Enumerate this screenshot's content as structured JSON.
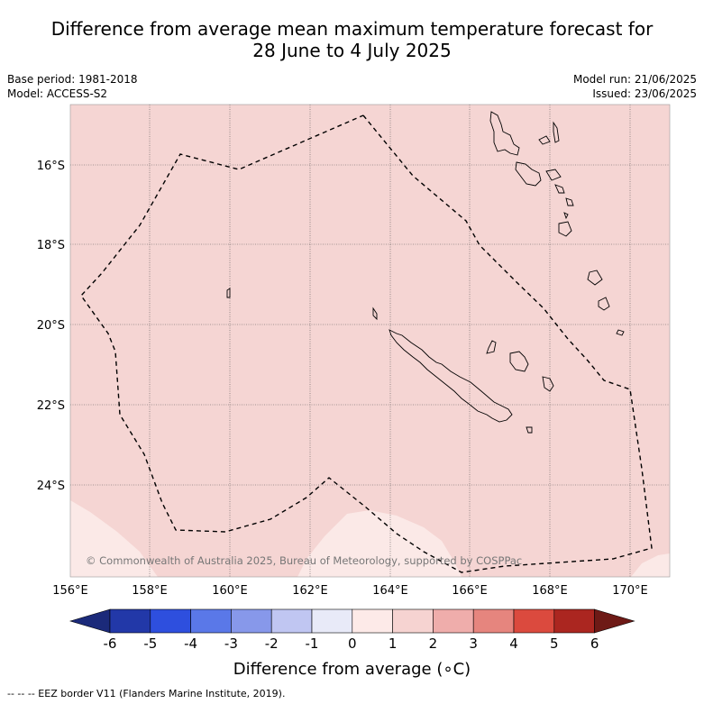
{
  "title": {
    "line1": "Difference from average mean maximum temperature forecast for",
    "line2": "28 June to 4 July 2025"
  },
  "meta_left": {
    "base_period": "Base period: 1981-2018",
    "model": "Model: ACCESS-S2"
  },
  "meta_right": {
    "model_run": "Model run: 21/06/2025",
    "issued": "Issued: 23/06/2025"
  },
  "map": {
    "lat_labels": [
      "16°S",
      "18°S",
      "20°S",
      "22°S",
      "24°S"
    ],
    "lon_labels": [
      "156°E",
      "158°E",
      "160°E",
      "162°E",
      "164°E",
      "166°E",
      "168°E",
      "170°E"
    ],
    "copyright": "© Commonwealth of Australia 2025, Bureau of Meteorology, supported by COSPPac",
    "background_color": "#f5d5d3",
    "low_anomaly_color": "#fbe9e7",
    "grid": true,
    "coastline_color": "#000000",
    "eez_line_style": "dashed"
  },
  "colorbar": {
    "ticks": [
      "-6",
      "-5",
      "-4",
      "-3",
      "-2",
      "-1",
      "0",
      "1",
      "2",
      "3",
      "4",
      "5",
      "6"
    ],
    "colors": [
      "#1b2a7a",
      "#2238a8",
      "#2e4fde",
      "#5a78e8",
      "#8798ea",
      "#c0c6f2",
      "#e8eaf8",
      "#fdeae8",
      "#f6d3d1",
      "#efadab",
      "#e6857e",
      "#db4a3e",
      "#ab2620",
      "#6e1a16"
    ],
    "label": "Difference from average (∘C)"
  },
  "footnote": "--  --  -- EEZ border V11 (Flanders Marine Institute, 2019)."
}
